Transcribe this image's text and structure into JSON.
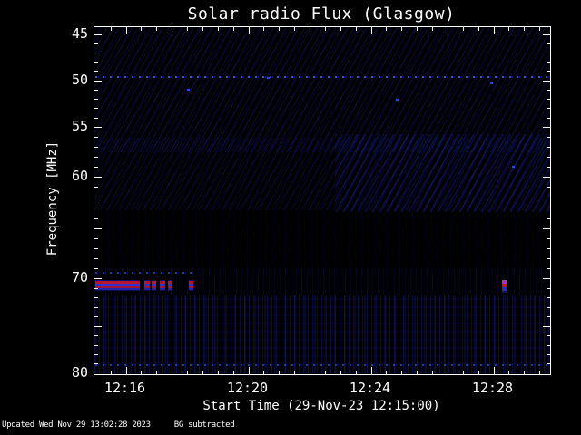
{
  "title": "Solar radio Flux (Glasgow)",
  "status": {
    "updated": "Updated Wed Nov 29 13:02:28 2023",
    "note": "BG subtracted"
  },
  "colors": {
    "background": "#000000",
    "frame": "#ffffff",
    "text": "#ffffff",
    "rfi_red": "#b51433",
    "rfi_blue": "#3333cc",
    "burst_magenta": "#b22cc6",
    "speckle_blue": "#3a4ed0",
    "noise_navy": "#141e7d"
  },
  "chart_data": {
    "type": "heatmap",
    "title": "Solar radio Flux (Glasgow)",
    "xlabel": "Start Time (29-Nov-23 12:15:00)",
    "ylabel": "Frequency [MHz]",
    "x_axis": {
      "start_minute": 15,
      "end_minute": 29.9,
      "minor_tick_step_min": 0.5,
      "major_tick_minutes": [
        16,
        20,
        24,
        28
      ],
      "tick_labels": [
        {
          "label": "12:16",
          "minute": 16
        },
        {
          "label": "12:20",
          "minute": 20
        },
        {
          "label": "12:24",
          "minute": 24
        },
        {
          "label": "12:28",
          "minute": 28
        }
      ]
    },
    "y_axis": {
      "min_mhz": 45,
      "max_mhz": 80,
      "minor_tick_step_mhz": 1,
      "major_tick_mhz": [
        45,
        50,
        55,
        60,
        65,
        70,
        75,
        80
      ],
      "labeled_ticks": [
        {
          "label": "45",
          "mhz": 45
        },
        {
          "label": "50",
          "mhz": 50
        },
        {
          "label": "55",
          "mhz": 55
        },
        {
          "label": "60",
          "mhz": 60
        },
        {
          "label": "70",
          "mhz": 70
        },
        {
          "label": "80",
          "mhz": 80
        }
      ]
    },
    "features": {
      "rfi_band": {
        "description": "narrowband RFI line near 71 MHz, red core with blue edges",
        "freq_mhz": 70.9,
        "freq_top_mhz": 70.2,
        "segments_min": [
          [
            15.0,
            16.45
          ],
          [
            16.6,
            16.78
          ],
          [
            16.85,
            17.0
          ],
          [
            17.1,
            17.3
          ],
          [
            17.38,
            17.52
          ],
          [
            18.05,
            18.2
          ]
        ]
      },
      "burst_mark": {
        "description": "short bright magenta/red point near 71 MHz",
        "minute": 28.35,
        "freq_top_mhz": 70.15
      },
      "speckle_lines": [
        {
          "name": "interference-line-50mhz",
          "freq_mhz": 49.6,
          "start_min": 15.0,
          "end_min": 29.9,
          "dim": false
        },
        {
          "name": "interference-line-79mhz",
          "freq_mhz": 79.1,
          "start_min": 15.0,
          "end_min": 29.9,
          "dim": true
        },
        {
          "name": "interference-line-69mhz",
          "freq_mhz": 69.4,
          "start_min": 15.0,
          "end_min": 18.3,
          "dim": true
        }
      ],
      "dots": [
        {
          "minute": 18.0,
          "freq_mhz": 50.9
        },
        {
          "minute": 27.9,
          "freq_mhz": 50.2
        },
        {
          "minute": 28.6,
          "freq_mhz": 58.9
        },
        {
          "minute": 20.6,
          "freq_mhz": 49.7
        },
        {
          "minute": 24.8,
          "freq_mhz": 52.0
        }
      ]
    }
  }
}
